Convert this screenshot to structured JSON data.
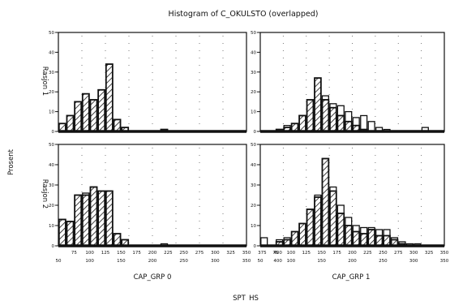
{
  "chart_data": {
    "type": "bar",
    "title": "Histogram of C_OKULSTO (overlapped)",
    "ylabel": "Prosent",
    "xlabel": "SPT_HS",
    "row_labels": [
      "Rasjon 1",
      "Rasjon 2"
    ],
    "column_labels": [
      "CAP_GRP 0",
      "CAP_GRP 1"
    ],
    "ylim": [
      0,
      50
    ],
    "y_ticks": [
      "0",
      "10",
      "20",
      "30",
      "40",
      "50"
    ],
    "x_ticks_top": [
      "75",
      "100",
      "125",
      "150",
      "175",
      "200",
      "225",
      "250",
      "275",
      "300",
      "325",
      "350",
      "375",
      "400"
    ],
    "x_ticks_bottom": [
      "50",
      "100",
      "150",
      "200",
      "250",
      "300",
      "350",
      "400"
    ],
    "bin_start": 50,
    "bin_width": 12.5,
    "legend": "none",
    "grid": true,
    "panels": [
      {
        "row": "Rasjon 1",
        "column": "CAP_GRP 0",
        "series": [
          {
            "name": "hatched",
            "values": [
              4,
              8,
              15,
              19,
              16,
              21,
              34,
              6,
              2,
              0,
              0,
              0,
              0,
              1,
              0,
              0,
              0,
              0,
              0,
              0,
              0,
              0,
              0,
              0
            ]
          },
          {
            "name": "open",
            "values": [
              0,
              0,
              0,
              0,
              0,
              0,
              0,
              0,
              0,
              0,
              0,
              0,
              0,
              0,
              0,
              0,
              0,
              0,
              0,
              0,
              0,
              0,
              0,
              0
            ]
          }
        ]
      },
      {
        "row": "Rasjon 1",
        "column": "CAP_GRP 1",
        "series": [
          {
            "name": "hatched",
            "values": [
              0,
              0,
              1,
              2,
              4,
              8,
              16,
              27,
              16,
              12,
              8,
              5,
              3,
              1,
              0,
              0,
              0,
              0,
              0,
              0,
              0,
              0,
              0,
              0
            ]
          },
          {
            "name": "open",
            "values": [
              0,
              0,
              1,
              3,
              3,
              8,
              12,
              22,
              18,
              14,
              13,
              10,
              7,
              8,
              5,
              2,
              1,
              0,
              0,
              0,
              0,
              2,
              0,
              0
            ]
          }
        ]
      },
      {
        "row": "Rasjon 2",
        "column": "CAP_GRP 0",
        "series": [
          {
            "name": "hatched",
            "values": [
              13,
              12,
              25,
              25,
              29,
              27,
              27,
              6,
              3,
              0,
              0,
              0,
              0,
              0,
              0,
              0,
              0,
              0,
              0,
              0,
              0,
              0,
              0,
              0
            ]
          },
          {
            "name": "open",
            "values": [
              13,
              12,
              25,
              26,
              29,
              27,
              27,
              5,
              3,
              0,
              0,
              0,
              0,
              1,
              0,
              0,
              0,
              0,
              0,
              0,
              0,
              0,
              0,
              0
            ]
          }
        ]
      },
      {
        "row": "Rasjon 2",
        "column": "CAP_GRP 1",
        "series": [
          {
            "name": "hatched",
            "values": [
              0,
              0,
              2,
              3,
              7,
              11,
              18,
              24,
              43,
              27,
              16,
              10,
              7,
              6,
              8,
              5,
              5,
              3,
              1,
              0,
              0,
              0,
              0,
              0
            ]
          },
          {
            "name": "open",
            "values": [
              4,
              0,
              3,
              4,
              6,
              9,
              18,
              25,
              43,
              29,
              20,
              14,
              10,
              9,
              9,
              8,
              8,
              4,
              2,
              1,
              1,
              0,
              0,
              0
            ]
          }
        ]
      }
    ]
  }
}
